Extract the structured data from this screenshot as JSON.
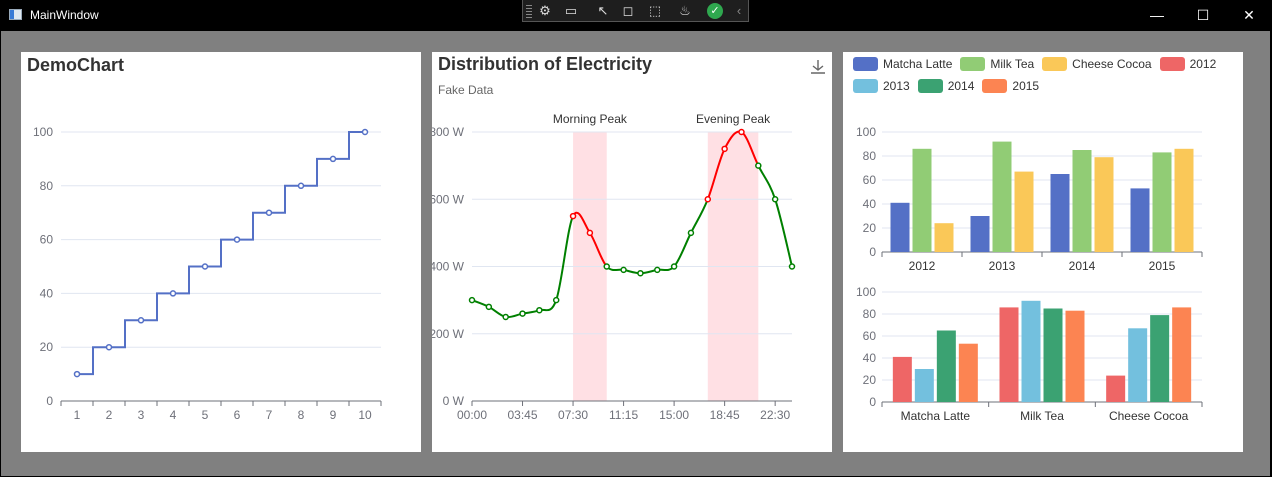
{
  "window": {
    "title": "MainWindow"
  },
  "colors": {
    "blue": "#5470c6",
    "green": "#91cc75",
    "yellow": "#fac858",
    "red": "#ee6666",
    "cyan": "#73c0de",
    "teal": "#3ba272",
    "orange": "#fc8452"
  },
  "chart_data": [
    {
      "type": "line",
      "step": true,
      "title": "DemoChart",
      "x": [
        "1",
        "2",
        "3",
        "4",
        "5",
        "6",
        "7",
        "8",
        "9",
        "10"
      ],
      "values": [
        10,
        20,
        30,
        40,
        50,
        60,
        70,
        80,
        90,
        100
      ],
      "ylim": [
        0,
        100
      ],
      "yticks": [
        0,
        20,
        40,
        60,
        80,
        100
      ],
      "grid": true
    },
    {
      "type": "line",
      "title": "Distribution of Electricity",
      "subtitle": "Fake Data",
      "x": [
        "00:00",
        "01:15",
        "02:30",
        "03:45",
        "05:00",
        "06:15",
        "07:30",
        "08:45",
        "10:00",
        "11:15",
        "12:30",
        "13:45",
        "15:00",
        "16:15",
        "17:30",
        "18:45",
        "20:00",
        "21:15",
        "22:30",
        "23:45"
      ],
      "values": [
        300,
        280,
        250,
        260,
        270,
        300,
        550,
        500,
        400,
        390,
        380,
        390,
        400,
        500,
        600,
        750,
        800,
        700,
        600,
        400
      ],
      "xticks": [
        "00:00",
        "03:45",
        "07:30",
        "11:15",
        "15:00",
        "18:45",
        "22:30"
      ],
      "ylim": [
        0,
        800
      ],
      "yticks": [
        "0 W",
        "200 W",
        "400 W",
        "600 W",
        "800 W"
      ],
      "highlight_ranges": [
        {
          "name": "Morning Peak",
          "from": "07:30",
          "to": "10:00"
        },
        {
          "name": "Evening Peak",
          "from": "17:30",
          "to": "21:15"
        }
      ],
      "colors": {
        "normal": "#008000",
        "peak": "#ff0000"
      }
    },
    {
      "type": "bar",
      "legend": [
        "Matcha Latte",
        "Milk Tea",
        "Cheese Cocoa",
        "2012",
        "2013",
        "2014",
        "2015"
      ],
      "legend_placement": "top-left",
      "top": {
        "categories": [
          "2012",
          "2013",
          "2014",
          "2015"
        ],
        "series": [
          {
            "name": "Matcha Latte",
            "values": [
              41,
              30,
              65,
              53
            ]
          },
          {
            "name": "Milk Tea",
            "values": [
              86,
              92,
              85,
              83
            ]
          },
          {
            "name": "Cheese Cocoa",
            "values": [
              24,
              67,
              79,
              86
            ]
          }
        ],
        "ylim": [
          0,
          100
        ],
        "yticks": [
          0,
          20,
          40,
          60,
          80,
          100
        ]
      },
      "bottom": {
        "categories": [
          "Matcha Latte",
          "Milk Tea",
          "Cheese Cocoa"
        ],
        "series": [
          {
            "name": "2012",
            "values": [
              41,
              86,
              24
            ]
          },
          {
            "name": "2013",
            "values": [
              30,
              92,
              67
            ]
          },
          {
            "name": "2014",
            "values": [
              65,
              85,
              79
            ]
          },
          {
            "name": "2015",
            "values": [
              53,
              83,
              86
            ]
          }
        ],
        "ylim": [
          0,
          100
        ],
        "yticks": [
          0,
          20,
          40,
          60,
          80,
          100
        ]
      }
    }
  ]
}
